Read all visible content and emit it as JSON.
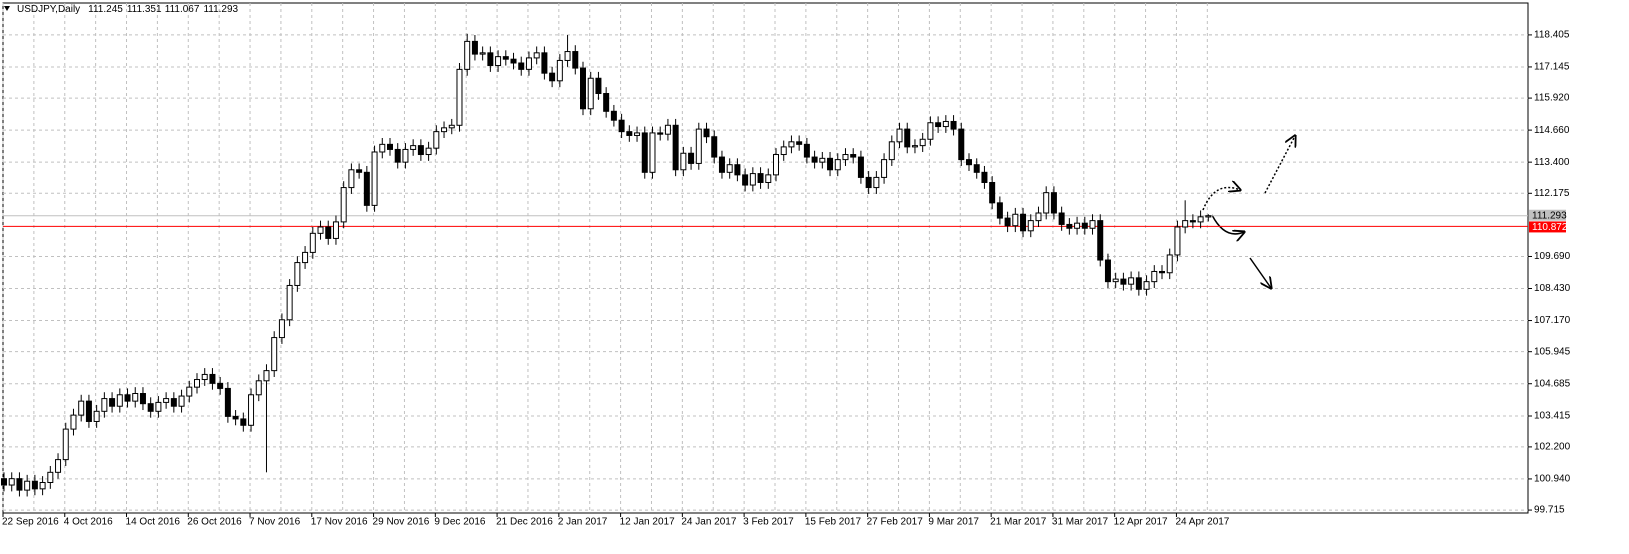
{
  "chart_data": {
    "type": "candlestick",
    "title": "USDJPY,Daily",
    "categories": [
      "22 Sep 2016",
      null,
      null,
      null,
      null,
      null,
      null,
      null,
      "4 Oct 2016",
      null,
      null,
      null,
      null,
      null,
      null,
      null,
      "14 Oct 2016",
      null,
      null,
      null,
      null,
      null,
      null,
      null,
      "26 Oct 2016",
      null,
      null,
      null,
      null,
      null,
      null,
      null,
      "7 Nov 2016",
      null,
      null,
      null,
      null,
      null,
      null,
      null,
      "17 Nov 2016",
      null,
      null,
      null,
      null,
      null,
      null,
      null,
      "29 Nov 2016",
      null,
      null,
      null,
      null,
      null,
      null,
      null,
      "9 Dec 2016",
      null,
      null,
      null,
      null,
      null,
      null,
      null,
      "21 Dec 2016",
      null,
      null,
      null,
      null,
      null,
      null,
      null,
      "2 Jan 2017",
      null,
      null,
      null,
      null,
      null,
      null,
      null,
      "12 Jan 2017",
      null,
      null,
      null,
      null,
      null,
      null,
      null,
      "24 Jan 2017",
      null,
      null,
      null,
      null,
      null,
      null,
      null,
      "3 Feb 2017",
      null,
      null,
      null,
      null,
      null,
      null,
      null,
      "15 Feb 2017",
      null,
      null,
      null,
      null,
      null,
      null,
      null,
      "27 Feb 2017",
      null,
      null,
      null,
      null,
      null,
      null,
      null,
      "9 Mar 2017",
      null,
      null,
      null,
      null,
      null,
      null,
      null,
      "21 Mar 2017",
      null,
      null,
      null,
      null,
      null,
      null,
      null,
      "31 Mar 2017",
      null,
      null,
      null,
      null,
      null,
      null,
      null,
      "12 Apr 2017",
      null,
      null,
      null,
      null,
      null,
      null,
      null,
      "24 Apr 2017",
      null,
      null,
      null,
      null
    ],
    "open": [
      100.95,
      100.7,
      100.95,
      100.5,
      100.85,
      100.55,
      100.8,
      101.2,
      101.7,
      102.9,
      103.45,
      104.0,
      103.2,
      103.6,
      104.1,
      103.8,
      104.25,
      104.0,
      104.3,
      103.9,
      103.6,
      103.95,
      104.1,
      103.8,
      104.2,
      104.55,
      104.85,
      105.05,
      104.7,
      104.5,
      103.4,
      103.3,
      103.05,
      104.25,
      104.8,
      105.2,
      106.5,
      107.2,
      108.55,
      109.45,
      109.85,
      110.6,
      110.85,
      110.4,
      111.05,
      112.4,
      113.1,
      113.0,
      111.7,
      113.8,
      114.1,
      113.9,
      113.4,
      113.9,
      114.05,
      113.7,
      113.95,
      114.6,
      114.75,
      114.85,
      117.05,
      118.15,
      117.65,
      117.7,
      117.2,
      117.55,
      117.45,
      117.3,
      117.05,
      117.5,
      117.7,
      116.9,
      116.6,
      117.4,
      117.75,
      117.1,
      115.5,
      116.7,
      116.1,
      115.4,
      115.05,
      114.6,
      114.45,
      114.55,
      113.0,
      114.55,
      114.5,
      114.85,
      113.1,
      113.75,
      113.35,
      114.7,
      114.4,
      113.6,
      113.0,
      113.3,
      112.9,
      112.5,
      112.95,
      112.6,
      112.9,
      113.7,
      114.0,
      114.2,
      114.1,
      113.6,
      113.4,
      113.55,
      113.1,
      113.5,
      113.7,
      113.6,
      112.8,
      112.4,
      112.8,
      113.5,
      114.2,
      114.7,
      114.0,
      114.05,
      114.3,
      114.95,
      114.8,
      115.0,
      114.7,
      113.5,
      113.3,
      113.0,
      112.6,
      111.8,
      111.2,
      110.9,
      111.35,
      110.7,
      111.1,
      111.4,
      112.2,
      111.4,
      110.95,
      110.8,
      111.0,
      110.8,
      111.1,
      109.55,
      108.7,
      108.8,
      108.6,
      108.85,
      108.4,
      108.7,
      109.1,
      109.05,
      109.75,
      110.85,
      111.1,
      111.05,
      111.245
    ],
    "high": [
      101.2,
      101.2,
      101.2,
      101.1,
      101.1,
      101.05,
      101.45,
      101.95,
      103.15,
      103.7,
      104.25,
      104.25,
      103.85,
      104.35,
      104.35,
      104.5,
      104.5,
      104.55,
      104.55,
      104.15,
      104.2,
      104.35,
      104.35,
      104.45,
      104.8,
      105.1,
      105.3,
      105.3,
      104.95,
      104.75,
      103.65,
      103.55,
      104.5,
      105.05,
      105.45,
      106.75,
      107.45,
      108.8,
      109.7,
      110.1,
      110.85,
      111.1,
      111.1,
      111.3,
      112.65,
      113.35,
      113.35,
      113.25,
      114.05,
      114.35,
      114.35,
      114.15,
      114.15,
      114.3,
      114.3,
      114.2,
      114.85,
      115.0,
      115.1,
      117.3,
      118.45,
      118.4,
      117.95,
      117.95,
      117.8,
      117.8,
      117.7,
      117.55,
      117.75,
      117.95,
      117.95,
      117.15,
      117.65,
      118.4,
      118.0,
      117.35,
      116.95,
      116.95,
      116.35,
      115.65,
      115.3,
      114.85,
      114.8,
      114.8,
      114.8,
      114.8,
      115.1,
      115.1,
      114.0,
      114.0,
      114.95,
      114.95,
      114.65,
      113.85,
      113.55,
      113.55,
      113.15,
      113.2,
      113.2,
      113.15,
      113.95,
      114.25,
      114.45,
      114.45,
      114.35,
      113.85,
      113.8,
      113.8,
      113.75,
      113.95,
      113.95,
      113.85,
      113.05,
      113.05,
      113.75,
      114.45,
      114.95,
      114.95,
      114.3,
      114.55,
      115.2,
      115.2,
      115.25,
      115.25,
      114.95,
      113.75,
      113.55,
      113.25,
      112.85,
      112.05,
      111.45,
      111.6,
      111.6,
      111.35,
      111.65,
      112.45,
      112.45,
      111.65,
      111.2,
      111.25,
      111.25,
      111.35,
      111.35,
      109.8,
      109.05,
      109.05,
      109.1,
      109.1,
      108.95,
      109.35,
      109.35,
      110.0,
      111.1,
      111.9,
      111.35,
      111.5,
      111.351
    ],
    "low": [
      100.45,
      100.45,
      100.25,
      100.25,
      100.3,
      100.3,
      100.55,
      100.95,
      101.45,
      102.65,
      103.2,
      102.95,
      102.95,
      103.35,
      103.55,
      103.55,
      103.75,
      103.75,
      103.65,
      103.35,
      103.35,
      103.7,
      103.55,
      103.55,
      103.95,
      104.3,
      104.6,
      104.45,
      104.25,
      103.15,
      103.05,
      102.8,
      102.8,
      104.0,
      101.2,
      104.95,
      106.25,
      106.95,
      108.3,
      109.2,
      109.6,
      110.35,
      110.15,
      110.15,
      110.8,
      112.15,
      112.75,
      111.45,
      111.45,
      113.55,
      113.65,
      113.15,
      113.15,
      113.65,
      113.45,
      113.45,
      113.7,
      114.35,
      114.5,
      114.6,
      116.8,
      117.4,
      117.4,
      116.95,
      116.95,
      117.2,
      117.05,
      116.8,
      116.8,
      117.25,
      116.65,
      116.35,
      116.35,
      117.15,
      116.85,
      115.25,
      115.25,
      115.85,
      115.15,
      114.8,
      114.35,
      114.2,
      114.2,
      112.75,
      112.75,
      114.25,
      114.25,
      112.85,
      112.85,
      113.1,
      113.1,
      114.15,
      113.35,
      112.75,
      112.75,
      112.65,
      112.25,
      112.25,
      112.35,
      112.35,
      112.65,
      113.45,
      113.75,
      113.85,
      113.35,
      113.15,
      113.15,
      112.85,
      112.85,
      113.25,
      113.35,
      112.55,
      112.15,
      112.15,
      112.55,
      113.25,
      113.95,
      113.75,
      113.75,
      113.8,
      114.05,
      114.55,
      114.55,
      114.45,
      113.25,
      113.05,
      112.75,
      112.35,
      111.55,
      110.95,
      110.65,
      110.65,
      110.45,
      110.45,
      110.85,
      111.15,
      111.15,
      110.7,
      110.55,
      110.55,
      110.55,
      110.55,
      109.3,
      108.45,
      108.45,
      108.35,
      108.35,
      108.15,
      108.15,
      108.45,
      108.8,
      108.8,
      109.5,
      110.6,
      110.8,
      110.8,
      111.067
    ],
    "close": [
      100.7,
      100.95,
      100.5,
      100.85,
      100.55,
      100.8,
      101.2,
      101.7,
      102.9,
      103.45,
      104.0,
      103.2,
      103.6,
      104.1,
      103.8,
      104.25,
      104.0,
      104.3,
      103.9,
      103.6,
      103.95,
      104.1,
      103.8,
      104.2,
      104.55,
      104.85,
      105.05,
      104.7,
      104.5,
      103.4,
      103.3,
      103.05,
      104.25,
      104.8,
      105.2,
      106.5,
      107.2,
      108.55,
      109.45,
      109.85,
      110.6,
      110.85,
      110.4,
      111.05,
      112.4,
      113.1,
      113.0,
      111.7,
      113.8,
      114.1,
      113.9,
      113.4,
      113.9,
      114.05,
      113.7,
      113.95,
      114.6,
      114.75,
      114.85,
      117.05,
      118.15,
      117.65,
      117.7,
      117.2,
      117.55,
      117.45,
      117.3,
      117.05,
      117.5,
      117.7,
      116.9,
      116.6,
      117.4,
      117.75,
      117.1,
      115.5,
      116.7,
      116.1,
      115.4,
      115.05,
      114.6,
      114.45,
      114.55,
      113.0,
      114.55,
      114.5,
      114.85,
      113.1,
      113.75,
      113.35,
      114.7,
      114.4,
      113.6,
      113.0,
      113.3,
      112.9,
      112.5,
      112.95,
      112.6,
      112.9,
      113.7,
      114.0,
      114.2,
      114.1,
      113.6,
      113.4,
      113.55,
      113.1,
      113.5,
      113.7,
      113.6,
      112.8,
      112.4,
      112.8,
      113.5,
      114.2,
      114.7,
      114.0,
      114.05,
      114.3,
      114.95,
      114.8,
      115.0,
      114.7,
      113.5,
      113.3,
      113.0,
      112.6,
      111.8,
      111.2,
      110.9,
      111.35,
      110.7,
      111.1,
      111.4,
      112.2,
      111.4,
      110.95,
      110.8,
      111.0,
      110.8,
      111.1,
      109.55,
      108.7,
      108.8,
      108.6,
      108.85,
      108.4,
      108.7,
      109.1,
      109.05,
      109.75,
      110.85,
      111.1,
      111.05,
      111.25,
      111.293
    ],
    "up_color": "#ffffff",
    "down_color": "#000000",
    "ylim": [
      99.6,
      119.66
    ],
    "yticks": [
      99.715,
      {
        "value": 100.94,
        "label": "100.940"
      },
      {
        "value": 102.2,
        "label": "102.200"
      },
      103.415,
      104.685,
      105.945,
      {
        "value": 107.17,
        "label": "107.170"
      },
      {
        "value": 108.43,
        "label": "108.430"
      },
      {
        "value": 109.69,
        "label": "109.690"
      },
      112.175,
      {
        "value": 113.4,
        "label": "113.400"
      },
      {
        "value": 114.66,
        "label": "114.660"
      },
      {
        "value": 115.92,
        "label": "115.920"
      },
      117.145,
      118.405
    ],
    "grid": true,
    "hline": {
      "value": 110.872,
      "color": "#ff0000"
    }
  }
}
